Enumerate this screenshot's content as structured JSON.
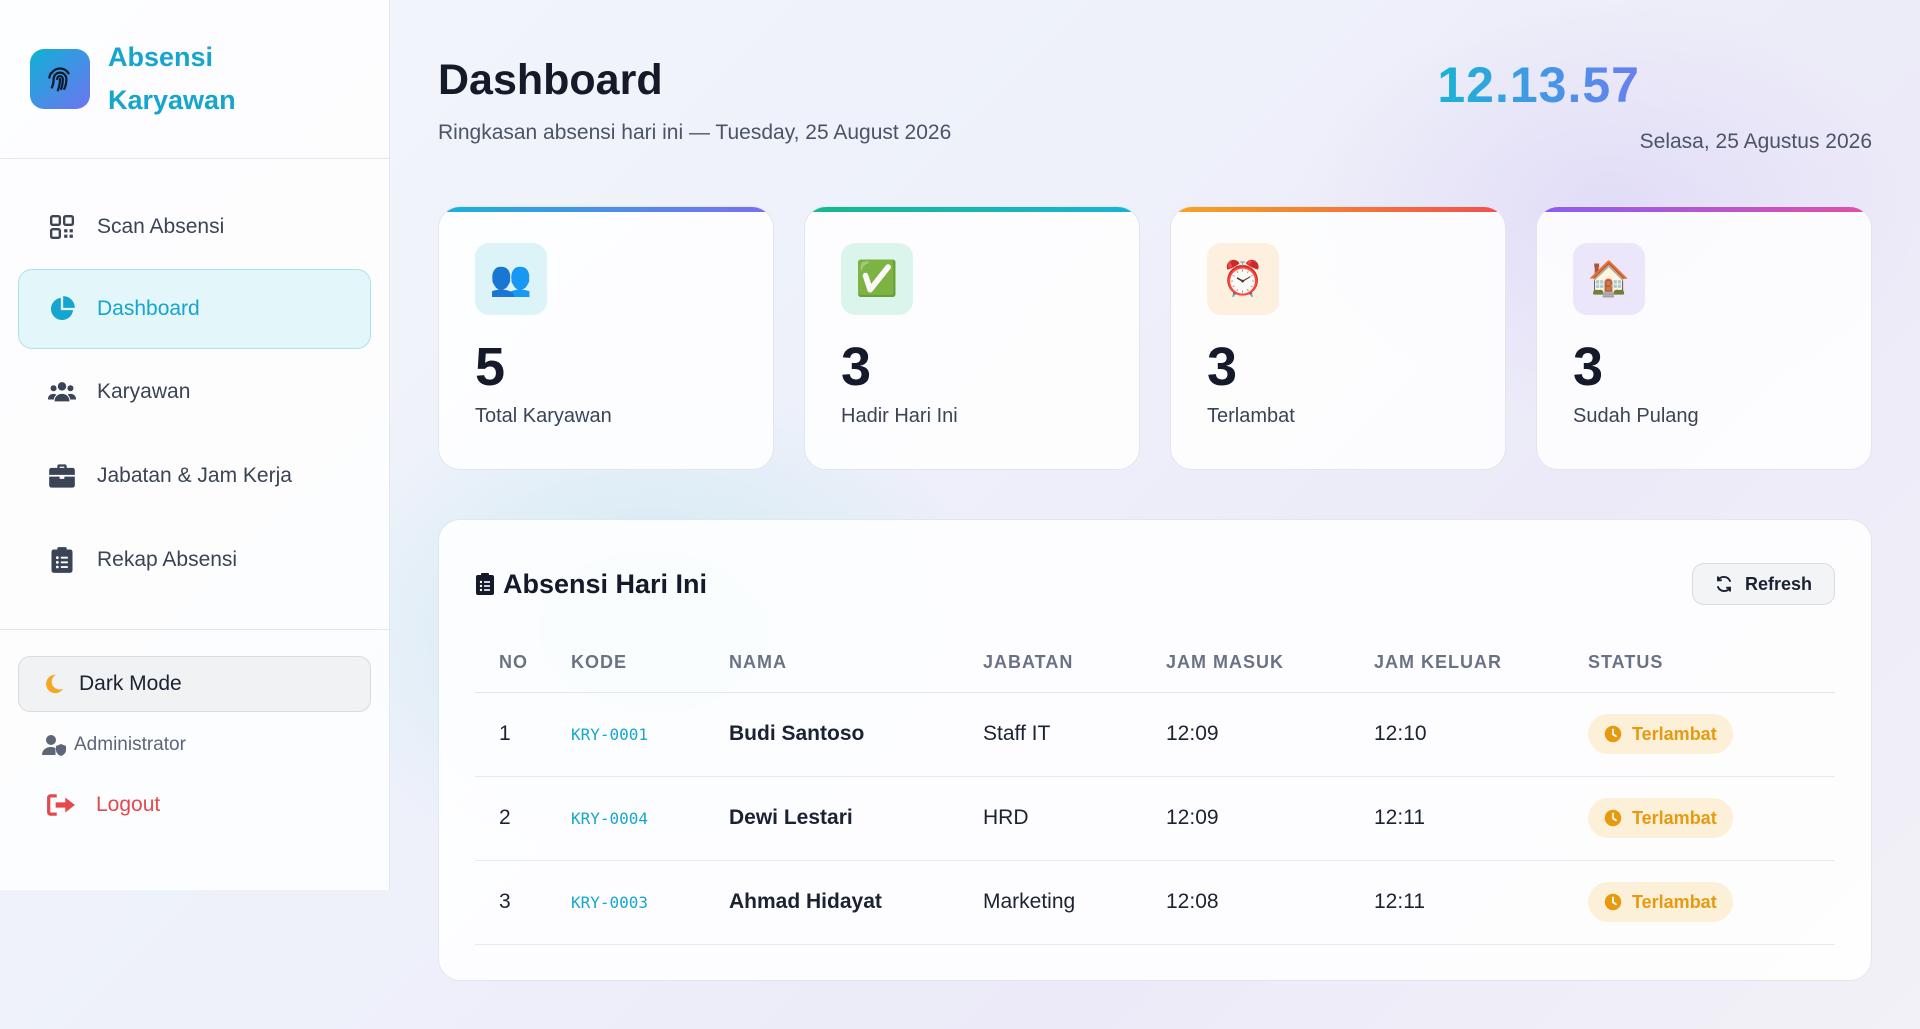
{
  "brand": {
    "title": "Absensi Karyawan",
    "icon": "fingerprint-icon",
    "accent": "#16a5cf"
  },
  "sidebar": {
    "items": [
      {
        "label": "Scan Absensi",
        "icon": "qrcode-icon",
        "active": false
      },
      {
        "label": "Dashboard",
        "icon": "pie-chart-icon",
        "active": true
      },
      {
        "label": "Karyawan",
        "icon": "users-icon",
        "active": false
      },
      {
        "label": "Jabatan & Jam Kerja",
        "icon": "briefcase-icon",
        "active": false
      },
      {
        "label": "Rekap Absensi",
        "icon": "clipboard-list-icon",
        "active": false
      }
    ],
    "dark_mode_label": "Dark Mode",
    "user_label": "Administrator",
    "logout_label": "Logout"
  },
  "header": {
    "title": "Dashboard",
    "subtitle": "Ringkasan absensi hari ini — Tuesday, 25 August 2026",
    "clock_time": "12.13.57",
    "clock_date": "Selasa, 25 Agustus 2026"
  },
  "stats": [
    {
      "value": "5",
      "label": "Total Karyawan",
      "icon": "people-icon",
      "glyph": "👥",
      "gradient": [
        "#1ab2d8",
        "#7b6ef0"
      ],
      "icon_bg": "#dcf3f8"
    },
    {
      "value": "3",
      "label": "Hadir Hari Ini",
      "icon": "check-box-icon",
      "glyph": "✅",
      "gradient": [
        "#16b98c",
        "#1ab2d8"
      ],
      "icon_bg": "#dcf5ec"
    },
    {
      "value": "3",
      "label": "Terlambat",
      "icon": "alarm-clock-icon",
      "glyph": "⏰",
      "gradient": [
        "#f5a623",
        "#ef4f4f"
      ],
      "icon_bg": "#fdf0df"
    },
    {
      "value": "3",
      "label": "Sudah Pulang",
      "icon": "house-icon",
      "glyph": "🏠",
      "gradient": [
        "#8b5cf6",
        "#e14fa8"
      ],
      "icon_bg": "#ece6fb"
    }
  ],
  "attendance": {
    "title": "Absensi Hari Ini",
    "refresh_label": "Refresh",
    "columns": [
      "NO",
      "KODE",
      "NAMA",
      "JABATAN",
      "JAM MASUK",
      "JAM KELUAR",
      "STATUS"
    ],
    "rows": [
      {
        "no": "1",
        "kode": "KRY-0001",
        "nama": "Budi Santoso",
        "jabatan": "Staff IT",
        "jam_masuk": "12:09",
        "jam_keluar": "12:10",
        "status": "Terlambat"
      },
      {
        "no": "2",
        "kode": "KRY-0004",
        "nama": "Dewi Lestari",
        "jabatan": "HRD",
        "jam_masuk": "12:09",
        "jam_keluar": "12:11",
        "status": "Terlambat"
      },
      {
        "no": "3",
        "kode": "KRY-0003",
        "nama": "Ahmad Hidayat",
        "jabatan": "Marketing",
        "jam_masuk": "12:08",
        "jam_keluar": "12:11",
        "status": "Terlambat"
      }
    ],
    "status_color": "#e79a10"
  }
}
